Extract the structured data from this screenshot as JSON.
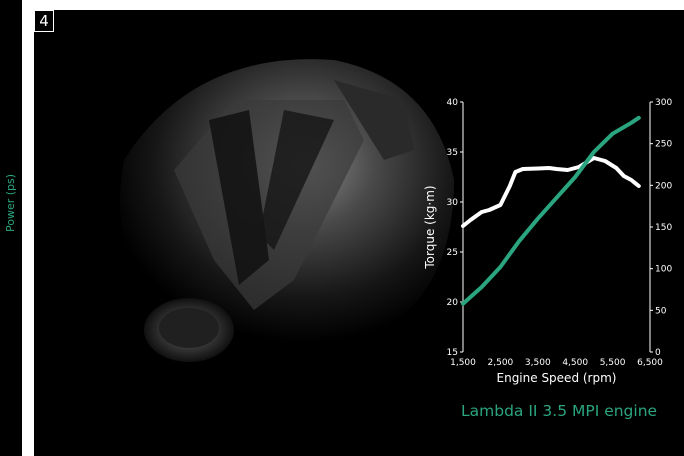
{
  "left_panel": {
    "label": "Power (ps)"
  },
  "main": {
    "badge": "4",
    "caption": "Lambda II 3.5 MPI engine"
  },
  "chart_data": {
    "type": "line",
    "title": "",
    "xlabel": "Engine Speed (rpm)",
    "ylabel": "Torque (kg·m)",
    "y2label": "Power (ps)",
    "xlim": [
      1500,
      6500
    ],
    "ylim": [
      15,
      40
    ],
    "y2lim": [
      0,
      300
    ],
    "x_ticks": [
      "1,500",
      "2,500",
      "3,500",
      "4,500",
      "5,500",
      "6,500"
    ],
    "y_ticks": [
      "15",
      "20",
      "25",
      "30",
      "35",
      "40"
    ],
    "y2_ticks": [
      "0",
      "50",
      "100",
      "150",
      "200",
      "250",
      "300"
    ],
    "grid": false,
    "series": [
      {
        "axis": "left",
        "color": "#ffffff",
        "x": [
          1500,
          1700,
          2000,
          2200,
          2500,
          2750,
          2900,
          3100,
          3500,
          3800,
          4000,
          4300,
          4600,
          5000,
          5300,
          5600,
          5800,
          6000,
          6200
        ],
        "values": [
          27.6,
          28.2,
          29.0,
          29.2,
          29.7,
          31.6,
          33.0,
          33.3,
          33.35,
          33.4,
          33.3,
          33.2,
          33.5,
          34.4,
          34.1,
          33.4,
          32.6,
          32.2,
          31.6
        ]
      },
      {
        "axis": "right",
        "color": "#2aa57f",
        "x": [
          1500,
          2000,
          2500,
          3000,
          3500,
          4000,
          4500,
          5000,
          5500,
          6000,
          6200
        ],
        "values": [
          58,
          78,
          102,
          133,
          160,
          185,
          210,
          240,
          262,
          275,
          281
        ]
      }
    ]
  }
}
